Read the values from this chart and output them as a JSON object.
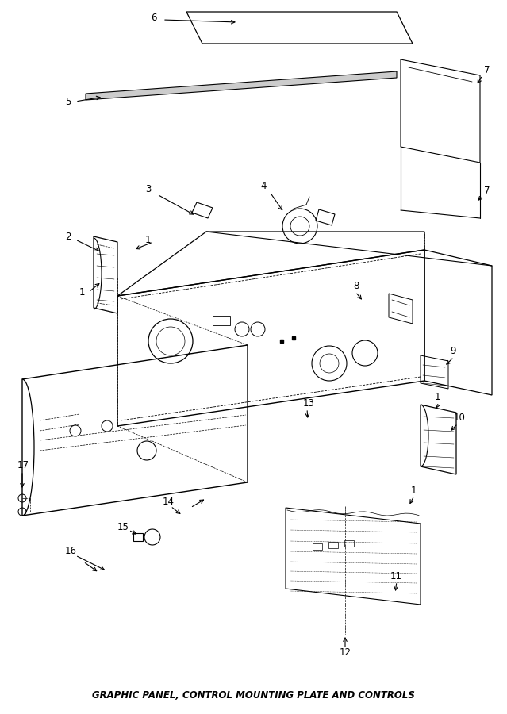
{
  "title": "GRAPHIC PANEL, CONTROL MOUNTING PLATE AND CONTROLS",
  "title_color": "#000000",
  "title_fontsize": 8.5,
  "background_color": "#ffffff",
  "line_color": "#000000",
  "figsize": [
    6.39,
    9.0
  ],
  "dpi": 100
}
